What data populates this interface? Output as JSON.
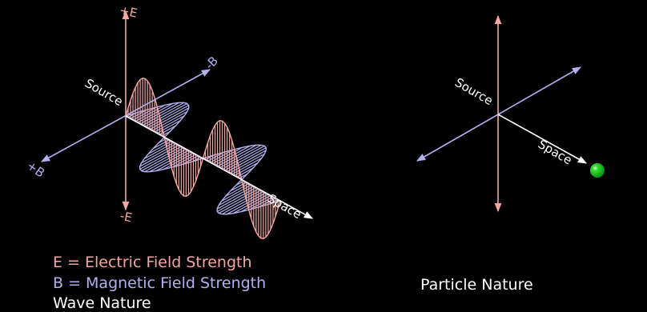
{
  "colors": {
    "background": "#000000",
    "electric": "#f4a6a2",
    "magnetic": "#b3b0f0",
    "space": "#ffffff",
    "particle": "#1fc41f"
  },
  "wave_diagram": {
    "labels": {
      "plus_e": "+E",
      "minus_e": "-E",
      "minus_b": "-B",
      "plus_b": "+B",
      "source": "Source",
      "space": "Space"
    },
    "legend": {
      "e_line": "E = Electric Field Strength",
      "b_line": "B = Magnetic Field Strength"
    },
    "caption": "Wave Nature"
  },
  "particle_diagram": {
    "labels": {
      "source": "Source",
      "space": "Space"
    },
    "caption": "Particle Nature"
  }
}
